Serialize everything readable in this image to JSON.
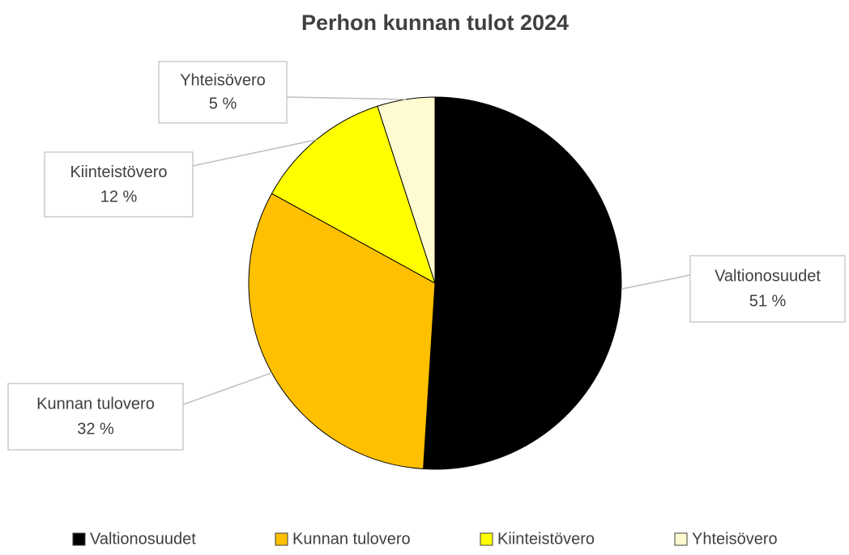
{
  "chart_data": {
    "type": "pie",
    "title": "Perhon kunnan tulot 2024",
    "categories": [
      "Valtionosuudet",
      "Kunnan tulovero",
      "Kiinteistövero",
      "Yhteisövero"
    ],
    "values": [
      51,
      32,
      12,
      5
    ],
    "value_labels": [
      "51 %",
      "32 %",
      "12 %",
      "5 %"
    ],
    "colors": [
      "#000000",
      "#FFC000",
      "#FFFF00",
      "#FFFBD0"
    ],
    "legend": "bottom"
  }
}
